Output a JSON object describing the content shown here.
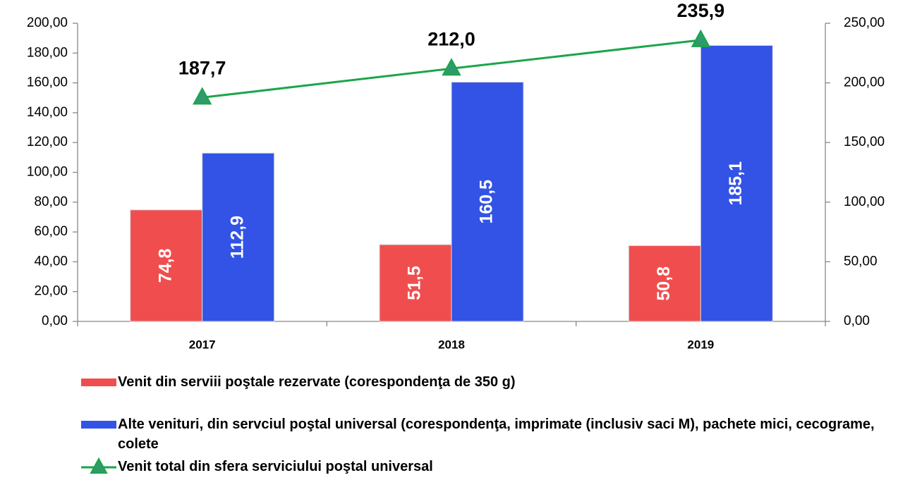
{
  "chart_data": {
    "type": "bar",
    "categories": [
      "2017",
      "2018",
      "2019"
    ],
    "series": [
      {
        "name": "Venit din serviii poştale rezervate (corespondenţa de 350 g)",
        "color": "#f04e4e",
        "values": [
          74.8,
          51.5,
          50.8
        ],
        "value_labels": [
          "74,8",
          "51,5",
          "50,8"
        ]
      },
      {
        "name": "Alte venituri, din servciul poştal universal (corespondenţa, imprimate (inclusiv saci M), pachete mici, cecograme, colete",
        "color": "#3253e6",
        "values": [
          112.9,
          160.5,
          185.1
        ],
        "value_labels": [
          "112,9",
          "160,5",
          "185,1"
        ]
      },
      {
        "name": "Venit total din sfera serviciului poştal universal",
        "color": "#1aa64a",
        "type": "line",
        "axis": "y2",
        "values": [
          187.7,
          212.0,
          235.9
        ],
        "value_labels": [
          "187,7",
          "212,0",
          "235,9"
        ]
      }
    ],
    "ylim": [
      0,
      200
    ],
    "yticks": [
      {
        "value": 0,
        "label": "0,00"
      },
      {
        "value": 20,
        "label": "20,00"
      },
      {
        "value": 40,
        "label": "40,00"
      },
      {
        "value": 60,
        "label": "60,00"
      },
      {
        "value": 80,
        "label": "80,00"
      },
      {
        "value": 100,
        "label": "100,00"
      },
      {
        "value": 120,
        "label": "120,00"
      },
      {
        "value": 140,
        "label": "140,00"
      },
      {
        "value": 160,
        "label": "160,00"
      },
      {
        "value": 180,
        "label": "180,00"
      },
      {
        "value": 200,
        "label": "200,00"
      }
    ],
    "y2lim": [
      0,
      250
    ],
    "y2ticks": [
      {
        "value": 0,
        "label": "0,00"
      },
      {
        "value": 50,
        "label": "50,00"
      },
      {
        "value": 100,
        "label": "100,00"
      },
      {
        "value": 150,
        "label": "150,00"
      },
      {
        "value": 200,
        "label": "200,00"
      },
      {
        "value": 250,
        "label": "250,00"
      }
    ],
    "grid": false
  }
}
